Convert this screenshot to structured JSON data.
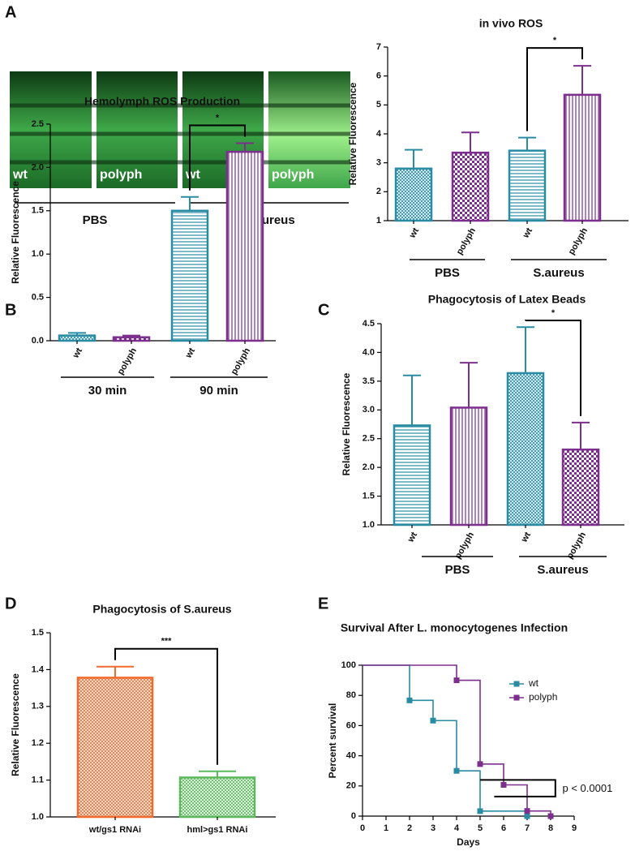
{
  "panel_labels": [
    "A",
    "B",
    "C",
    "D",
    "E"
  ],
  "images": {
    "labels": [
      "wt",
      "polyph",
      "wt",
      "polyph"
    ],
    "groups": [
      "PBS",
      "S.aureus"
    ]
  },
  "chart_data": [
    {
      "type": "bar",
      "title": "in vivo ROS",
      "ylabel": "Relative Fluorescence",
      "categories": [
        "wt",
        "polyph",
        "wt",
        "polyph"
      ],
      "groups": [
        "PBS",
        "S.aureus"
      ],
      "values": [
        2.8,
        3.35,
        3.42,
        5.35
      ],
      "errors": [
        0.65,
        0.7,
        0.45,
        1.0
      ],
      "colors": [
        "#2a8ca3",
        "#7d2f8e",
        "#2a8ca3",
        "#7d2f8e"
      ],
      "patterns": [
        "crosshatch",
        "checker",
        "hlines",
        "vlines"
      ],
      "ylim": [
        1,
        7
      ],
      "yticks": [
        1,
        2,
        3,
        4,
        5,
        6,
        7
      ],
      "annotation": "*"
    },
    {
      "type": "bar",
      "title": "Hemolymph ROS Production",
      "ylabel": "Relative Fluorescence",
      "categories": [
        "wt",
        "polyph",
        "wt",
        "polyph"
      ],
      "groups": [
        "30 min",
        "90 min"
      ],
      "values": [
        0.06,
        0.04,
        1.5,
        2.18
      ],
      "errors": [
        0.03,
        0.02,
        0.16,
        0.1
      ],
      "colors": [
        "#2a8ca3",
        "#7d2f8e",
        "#2a8ca3",
        "#7d2f8e"
      ],
      "patterns": [
        "crosshatch",
        "checker",
        "hlines",
        "vlines"
      ],
      "ylim": [
        0,
        2.5
      ],
      "yticks": [
        {
          "value": 0,
          "label": "0.0"
        },
        0.5,
        {
          "value": 1,
          "label": "1.0"
        },
        1.5,
        {
          "value": 2,
          "label": "2.0"
        },
        2.5
      ],
      "annotation": "*"
    },
    {
      "type": "bar",
      "title": "Phagocytosis of Latex Beads",
      "ylabel": "Relative Fluorescence",
      "categories": [
        "wt",
        "polyph",
        "wt",
        "polyph"
      ],
      "groups": [
        "PBS",
        "S.aureus"
      ],
      "values": [
        2.73,
        3.04,
        3.64,
        2.31
      ],
      "errors": [
        0.87,
        0.78,
        0.8,
        0.47
      ],
      "colors": [
        "#2a8ca3",
        "#7d2f8e",
        "#2a8ca3",
        "#7d2f8e"
      ],
      "patterns": [
        "hlines",
        "vlines",
        "crosshatch",
        "checker"
      ],
      "ylim": [
        1,
        4.5
      ],
      "yticks": [
        {
          "value": 1,
          "label": "1.0"
        },
        1.5,
        {
          "value": 2,
          "label": "2.0"
        },
        2.5,
        {
          "value": 3,
          "label": "3.0"
        },
        3.5,
        {
          "value": 4,
          "label": "4.0"
        },
        4.5
      ],
      "annotation": "*"
    },
    {
      "type": "bar",
      "title": "Phagocytosis of S.aureus",
      "ylabel": "Relative Fluorescence",
      "categories": [
        "wt/gs1 RNAi",
        "hml>gs1 RNAi"
      ],
      "values": [
        1.378,
        1.107
      ],
      "errors": [
        0.03,
        0.017
      ],
      "colors": [
        "#f26a2e",
        "#5cb85c"
      ],
      "patterns": [
        "crosshatch",
        "crosshatch"
      ],
      "ylim": [
        1.0,
        1.5
      ],
      "yticks": [
        {
          "value": 1,
          "label": "1.0"
        },
        1.1,
        1.2,
        1.3,
        1.4,
        1.5
      ],
      "annotation": "***"
    },
    {
      "type": "line",
      "title": "Survival After L. monocytogenes Infection",
      "xlabel": "Days",
      "ylabel": "Percent survival",
      "series": [
        {
          "name": "wt",
          "color": "#2a8ca3",
          "x": [
            0,
            2,
            3,
            4,
            5,
            7
          ],
          "values": [
            100,
            76.7,
            63.3,
            30,
            3.3,
            0
          ]
        },
        {
          "name": "polyph",
          "color": "#7d2f8e",
          "x": [
            0,
            4,
            5,
            6,
            7,
            8
          ],
          "values": [
            100,
            90,
            34.5,
            20.7,
            3.4,
            0
          ]
        }
      ],
      "xlim": [
        0,
        9
      ],
      "xticks": [
        0,
        1,
        2,
        3,
        4,
        5,
        6,
        7,
        8,
        9
      ],
      "ylim": [
        0,
        100
      ],
      "yticks": [
        0,
        20,
        40,
        60,
        80,
        100
      ],
      "legend": "upper right",
      "annotation": "p < 0.0001"
    }
  ]
}
